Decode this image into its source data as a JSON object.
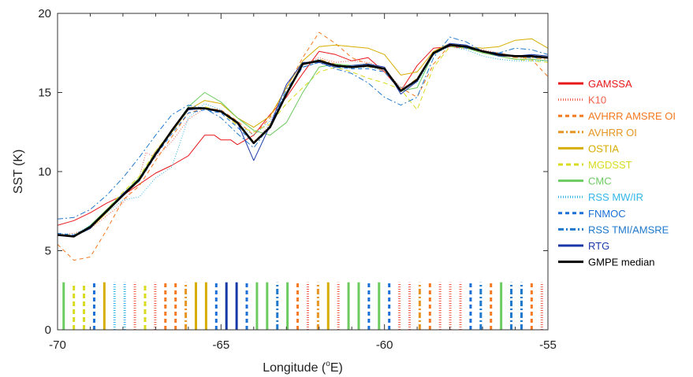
{
  "chart_data": {
    "type": "line",
    "xlabel_main": "Longitude (",
    "xlabel_sup": "o",
    "xlabel_tail": "E)",
    "ylabel": "SST (K)",
    "xlim": [
      -70,
      -55
    ],
    "ylim": [
      0,
      20
    ],
    "xticks": [
      "-70",
      "-65",
      "-60",
      "-55"
    ],
    "yticks": [
      "0",
      "5",
      "10",
      "15",
      "20"
    ],
    "grid": false,
    "legend_position": "right",
    "series": [
      {
        "name": "GAMSSA",
        "color": "#e8171b",
        "dash": "solid",
        "width": 1.0,
        "x": [
          -70,
          -69.5,
          -69,
          -68.5,
          -68,
          -67.5,
          -67,
          -66.5,
          -66,
          -65.5,
          -65.2,
          -65,
          -64.7,
          -64.5,
          -64,
          -63.5,
          -63,
          -62.5,
          -62,
          -61.5,
          -61,
          -60.5,
          -60,
          -59.5,
          -59,
          -58.5,
          -58,
          -57.5,
          -57,
          -56.5,
          -56,
          -55.5,
          -55
        ],
        "y": [
          6.6,
          6.9,
          7.4,
          8.0,
          8.5,
          9.2,
          9.9,
          10.4,
          11.0,
          12.3,
          12.3,
          12.0,
          12.0,
          11.7,
          12.3,
          13.6,
          14.7,
          16.2,
          17.6,
          17.4,
          17.0,
          17.2,
          16.3,
          15.1,
          16.7,
          17.8,
          17.9,
          17.8,
          17.6,
          17.3,
          17.3,
          17.3,
          17.2
        ]
      },
      {
        "name": "K10",
        "color": "#f0604a",
        "dash": "1,2",
        "width": 1.0,
        "x": [
          -70,
          -69.5,
          -69,
          -68.5,
          -68,
          -67.5,
          -67.3,
          -67,
          -66.5,
          -66,
          -65.5,
          -65,
          -64.5,
          -64,
          -63.5,
          -63,
          -62.5,
          -62,
          -61.5,
          -61,
          -60.5,
          -60,
          -59.5,
          -59,
          -58.5,
          -58,
          -57.5,
          -57,
          -56.5,
          -56,
          -55.5,
          -55
        ],
        "y": [
          6.0,
          6.1,
          6.4,
          7.2,
          8.0,
          9.6,
          11.2,
          10.9,
          11.9,
          13.3,
          14.0,
          13.9,
          13.0,
          11.8,
          13.0,
          15.5,
          16.8,
          17.2,
          16.9,
          17.0,
          16.9,
          16.5,
          15.3,
          15.7,
          17.5,
          18.0,
          17.9,
          17.7,
          17.5,
          17.3,
          17.3,
          17.2
        ]
      },
      {
        "name": "AVHRR AMSRE OI",
        "color": "#f47920",
        "dash": "5,4",
        "width": 1.0,
        "x": [
          -70,
          -69.5,
          -69,
          -68.5,
          -68,
          -67.5,
          -67,
          -66.5,
          -66,
          -65.5,
          -65,
          -64.5,
          -64,
          -63.5,
          -63,
          -62.5,
          -62,
          -61.5,
          -61,
          -60.5,
          -60,
          -59.5,
          -59,
          -58.5,
          -58,
          -57.5,
          -57,
          -56.5,
          -56,
          -55.5,
          -55
        ],
        "y": [
          5.4,
          4.4,
          4.6,
          6.3,
          8.2,
          9.1,
          10.7,
          12.2,
          13.7,
          14.0,
          13.9,
          13.2,
          12.3,
          13.4,
          15.3,
          17.2,
          18.8,
          18.1,
          17.2,
          16.8,
          16.3,
          15.3,
          14.7,
          16.8,
          18.0,
          17.8,
          17.6,
          17.5,
          17.3,
          17.1,
          16.0
        ]
      },
      {
        "name": "AVHRR OI",
        "color": "#e69522",
        "dash": "7,3,2,3",
        "width": 1.0,
        "x": [
          -70,
          -69.5,
          -69,
          -68.5,
          -68,
          -67.5,
          -67,
          -66.5,
          -66,
          -65.5,
          -65,
          -64.5,
          -64,
          -63.5,
          -63,
          -62.5,
          -62,
          -61.5,
          -61,
          -60.5,
          -60,
          -59.5,
          -59,
          -58.5,
          -58,
          -57.5,
          -57,
          -56.5,
          -56,
          -55.5,
          -55
        ],
        "y": [
          6.0,
          5.9,
          6.5,
          7.5,
          8.6,
          9.5,
          11.3,
          12.6,
          13.9,
          14.0,
          13.8,
          13.0,
          11.9,
          12.8,
          15.0,
          16.8,
          17.1,
          16.8,
          16.6,
          16.6,
          16.5,
          15.1,
          15.9,
          17.4,
          18.0,
          17.9,
          17.6,
          17.4,
          17.2,
          17.2,
          17.1
        ]
      },
      {
        "name": "OSTIA",
        "color": "#d6ad00",
        "dash": "solid",
        "width": 1.0,
        "x": [
          -70,
          -69.5,
          -69,
          -68.5,
          -68,
          -67.5,
          -67,
          -66.5,
          -66,
          -65.5,
          -65,
          -64.5,
          -64,
          -63.5,
          -63,
          -62.5,
          -62,
          -61.5,
          -61,
          -60.5,
          -60,
          -59.5,
          -59,
          -58.5,
          -58,
          -57.5,
          -57,
          -56.5,
          -56,
          -55.5,
          -55
        ],
        "y": [
          6.0,
          5.9,
          6.4,
          7.4,
          8.5,
          9.4,
          11.1,
          12.5,
          13.9,
          14.5,
          14.3,
          13.4,
          12.8,
          13.5,
          15.3,
          17.0,
          17.9,
          18.0,
          17.9,
          17.8,
          17.4,
          16.1,
          16.3,
          17.6,
          18.1,
          17.9,
          17.8,
          17.9,
          18.3,
          18.4,
          17.8
        ]
      },
      {
        "name": "MGDSST",
        "color": "#d9dc1e",
        "dash": "6,4",
        "width": 1.0,
        "x": [
          -70,
          -69.5,
          -69,
          -68.5,
          -68,
          -67.5,
          -67,
          -66.5,
          -66,
          -65.5,
          -65,
          -64.5,
          -64,
          -63.5,
          -63,
          -62.5,
          -62,
          -61.5,
          -61,
          -60.5,
          -60,
          -59.5,
          -59,
          -58.5,
          -58,
          -57.5,
          -57,
          -56.5,
          -56,
          -55.5,
          -55
        ],
        "y": [
          6.0,
          6.0,
          6.5,
          7.6,
          8.7,
          9.7,
          11.3,
          12.6,
          13.9,
          14.1,
          13.8,
          12.9,
          12.5,
          13.0,
          14.3,
          15.3,
          16.3,
          16.6,
          16.3,
          15.9,
          15.6,
          15.2,
          13.9,
          16.6,
          17.9,
          17.8,
          17.5,
          17.3,
          17.1,
          17.0,
          16.9
        ]
      },
      {
        "name": "CMC",
        "color": "#6ccb5f",
        "dash": "solid",
        "width": 1.0,
        "x": [
          -70,
          -69.5,
          -69,
          -68.5,
          -68,
          -67.5,
          -67,
          -66.5,
          -66,
          -65.5,
          -65,
          -64.5,
          -64,
          -63.5,
          -63,
          -62.5,
          -62,
          -61.5,
          -61,
          -60.5,
          -60,
          -59.5,
          -59,
          -58.5,
          -58,
          -57.5,
          -57,
          -56.5,
          -56,
          -55.5,
          -55
        ],
        "y": [
          6.0,
          5.9,
          6.6,
          7.6,
          8.6,
          9.6,
          11.2,
          12.6,
          14.1,
          15.0,
          14.4,
          13.4,
          12.6,
          12.3,
          13.1,
          15.0,
          16.6,
          16.8,
          16.7,
          16.8,
          16.5,
          15.1,
          15.3,
          17.5,
          18.0,
          17.8,
          17.5,
          17.3,
          17.1,
          17.1,
          17.0
        ]
      },
      {
        "name": "RSS MW/IR",
        "color": "#33b6e8",
        "dash": "1,2",
        "width": 1.0,
        "x": [
          -70,
          -69.5,
          -69,
          -68.5,
          -68,
          -67.5,
          -67,
          -66.5,
          -66,
          -65.5,
          -65,
          -64.5,
          -64,
          -63.5,
          -63,
          -62.5,
          -62,
          -61.5,
          -61,
          -60.5,
          -60,
          -59.5,
          -59,
          -58.5,
          -58,
          -57.5,
          -57,
          -56.5,
          -56,
          -55.5,
          -55
        ],
        "y": [
          6.1,
          6.0,
          6.6,
          7.4,
          8.2,
          8.4,
          9.6,
          10.3,
          13.4,
          14.3,
          13.9,
          13.0,
          12.3,
          13.2,
          15.0,
          16.8,
          17.1,
          16.6,
          16.5,
          16.6,
          16.4,
          15.3,
          15.6,
          17.4,
          17.9,
          17.7,
          17.3,
          17.1,
          17.0,
          17.0,
          17.0
        ]
      },
      {
        "name": "FNMOC",
        "color": "#1a6fd6",
        "dash": "5,4",
        "width": 1.0,
        "x": [
          -70,
          -69.5,
          -69,
          -68.5,
          -68,
          -67.5,
          -67,
          -66.5,
          -66,
          -65.5,
          -65,
          -64.5,
          -64,
          -63.5,
          -63,
          -62.5,
          -62,
          -61.5,
          -61,
          -60.5,
          -60,
          -59.5,
          -59,
          -58.5,
          -58,
          -57.5,
          -57,
          -56.5,
          -56,
          -55.5,
          -55
        ],
        "y": [
          6.1,
          6.0,
          6.5,
          7.5,
          8.5,
          9.4,
          11.0,
          12.4,
          13.7,
          13.9,
          13.7,
          12.8,
          11.8,
          12.9,
          15.0,
          16.6,
          16.9,
          16.6,
          16.5,
          16.5,
          16.3,
          15.1,
          15.8,
          17.4,
          18.0,
          17.8,
          17.6,
          17.5,
          17.3,
          17.2,
          17.2
        ]
      },
      {
        "name": "RSS TMI/AMSRE",
        "color": "#1e78cc",
        "dash": "7,3,2,3",
        "width": 1.0,
        "x": [
          -70,
          -69.5,
          -69,
          -68.5,
          -68,
          -67.5,
          -67,
          -66.5,
          -66,
          -65.5,
          -65,
          -64.5,
          -64,
          -63.5,
          -63,
          -62.5,
          -62,
          -61.5,
          -61,
          -60.5,
          -60,
          -59.5,
          -59,
          -58.5,
          -58,
          -57.5,
          -57,
          -56.5,
          -56,
          -55.5,
          -55
        ],
        "y": [
          7.0,
          7.1,
          7.6,
          8.5,
          9.6,
          10.9,
          12.3,
          13.6,
          14.2,
          14.0,
          13.4,
          12.4,
          11.5,
          12.9,
          15.2,
          16.6,
          16.9,
          16.5,
          16.2,
          15.6,
          14.7,
          14.2,
          14.7,
          17.2,
          18.5,
          18.2,
          17.6,
          17.5,
          17.8,
          17.7,
          17.4
        ]
      },
      {
        "name": "RTG",
        "color": "#1838a8",
        "dash": "solid",
        "width": 1.0,
        "x": [
          -70,
          -69.5,
          -69,
          -68.5,
          -68,
          -67.5,
          -67,
          -66.5,
          -66,
          -65.5,
          -65,
          -64.5,
          -64,
          -63.5,
          -63,
          -62.5,
          -62,
          -61.5,
          -61,
          -60.5,
          -60,
          -59.5,
          -59,
          -58.5,
          -58,
          -57.5,
          -57,
          -56.5,
          -56,
          -55.5,
          -55
        ],
        "y": [
          6.0,
          5.9,
          6.4,
          7.5,
          8.6,
          9.5,
          11.2,
          12.6,
          13.9,
          14.0,
          13.8,
          13.1,
          10.7,
          12.9,
          15.5,
          16.9,
          16.9,
          16.6,
          16.7,
          16.8,
          16.6,
          14.9,
          15.7,
          17.5,
          18.1,
          18.0,
          17.6,
          17.3,
          17.3,
          17.4,
          17.3
        ]
      },
      {
        "name": "GMPE median",
        "color": "#000000",
        "dash": "solid",
        "width": 2.6,
        "x": [
          -70,
          -69.5,
          -69,
          -68.5,
          -68,
          -67.5,
          -67,
          -66.5,
          -66,
          -65.5,
          -65,
          -64.5,
          -64,
          -63.5,
          -63,
          -62.5,
          -62,
          -61.5,
          -61,
          -60.5,
          -60,
          -59.5,
          -59,
          -58.5,
          -58,
          -57.5,
          -57,
          -56.5,
          -56,
          -55.5,
          -55
        ],
        "y": [
          6.0,
          5.9,
          6.5,
          7.5,
          8.5,
          9.5,
          11.1,
          12.6,
          14.0,
          14.0,
          13.8,
          13.1,
          11.8,
          12.8,
          14.9,
          16.8,
          17.0,
          16.7,
          16.6,
          16.7,
          16.5,
          15.1,
          15.8,
          17.5,
          18.0,
          17.9,
          17.6,
          17.4,
          17.3,
          17.3,
          17.2
        ]
      }
    ],
    "bar_sequence": [
      "CMC",
      "MGDSST",
      "MGDSST",
      "FNMOC",
      "OSTIA",
      "RSS MW/IR",
      "RSS MW/IR",
      "K10",
      "MGDSST",
      "K10",
      "AVHRR AMSRE OI",
      "AVHRR AMSRE OI",
      "AVHRR OI",
      "OSTIA",
      "OSTIA",
      "FNMOC",
      "RTG",
      "RTG",
      "FNMOC",
      "CMC",
      "CMC",
      "RSS TMI/AMSRE",
      "CMC",
      "AVHRR AMSRE OI",
      "K10",
      "AVHRR OI",
      "OSTIA",
      "K10",
      "CMC",
      "CMC",
      "FNMOC",
      "CMC",
      "FNMOC",
      "K10",
      "K10",
      "AVHRR OI",
      "AVHRR AMSRE OI",
      "K10",
      "K10",
      "K10",
      "FNMOC",
      "RSS TMI/AMSRE",
      "AVHRR AMSRE OI",
      "CMC",
      "RSS TMI/AMSRE",
      "RSS TMI/AMSRE",
      "AVHRR AMSRE OI",
      "K10"
    ],
    "bar_height": 3
  }
}
